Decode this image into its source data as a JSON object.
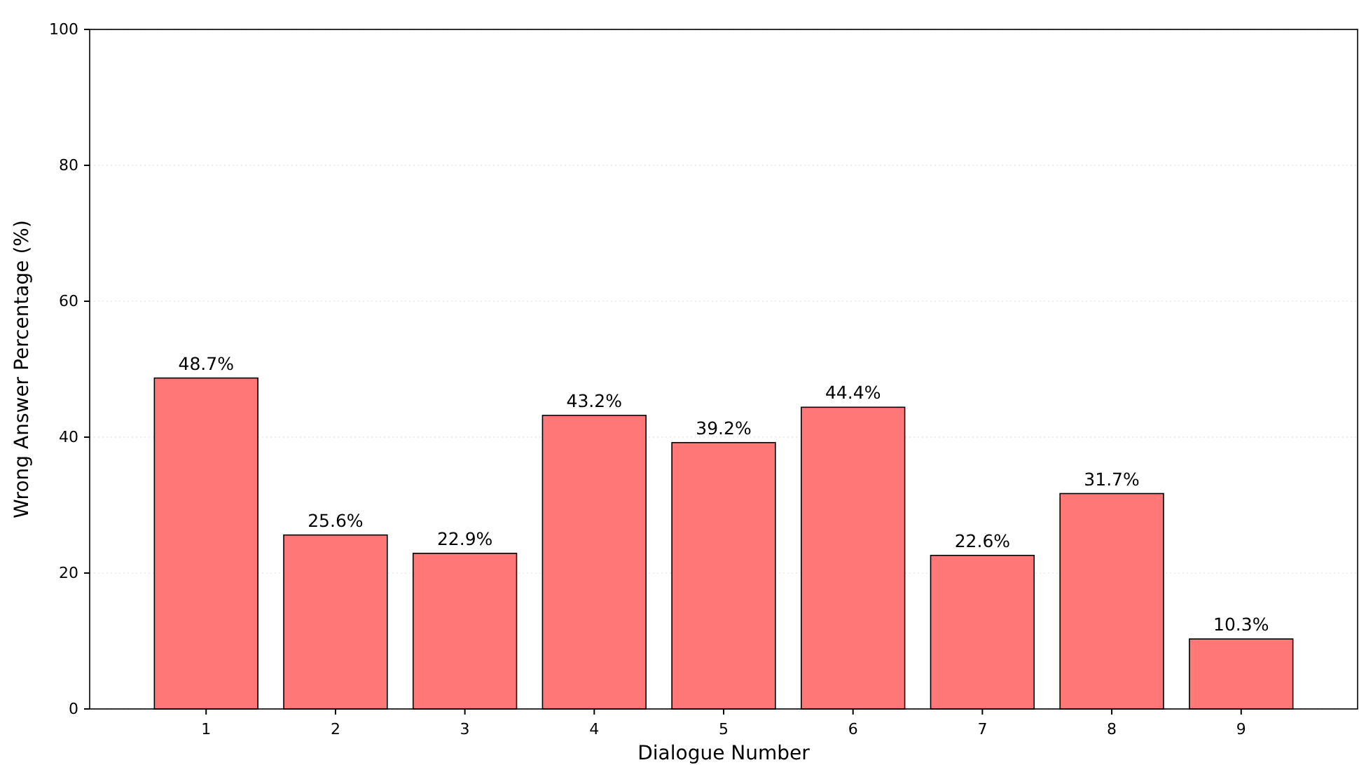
{
  "chart_data": {
    "type": "bar",
    "xlabel": "Dialogue Number",
    "ylabel": "Wrong Answer Percentage (%)",
    "categories": [
      "1",
      "2",
      "3",
      "4",
      "5",
      "6",
      "7",
      "8",
      "9"
    ],
    "values": [
      48.7,
      25.6,
      22.9,
      43.2,
      39.2,
      44.4,
      22.6,
      31.7,
      10.3
    ],
    "value_labels": [
      "48.7%",
      "25.6%",
      "22.9%",
      "43.2%",
      "39.2%",
      "44.4%",
      "22.6%",
      "31.7%",
      "10.3%"
    ],
    "color": "#ff7777",
    "ylim": [
      0,
      100
    ],
    "yticks": [
      0,
      20,
      40,
      60,
      80,
      100
    ],
    "grid": "y"
  }
}
